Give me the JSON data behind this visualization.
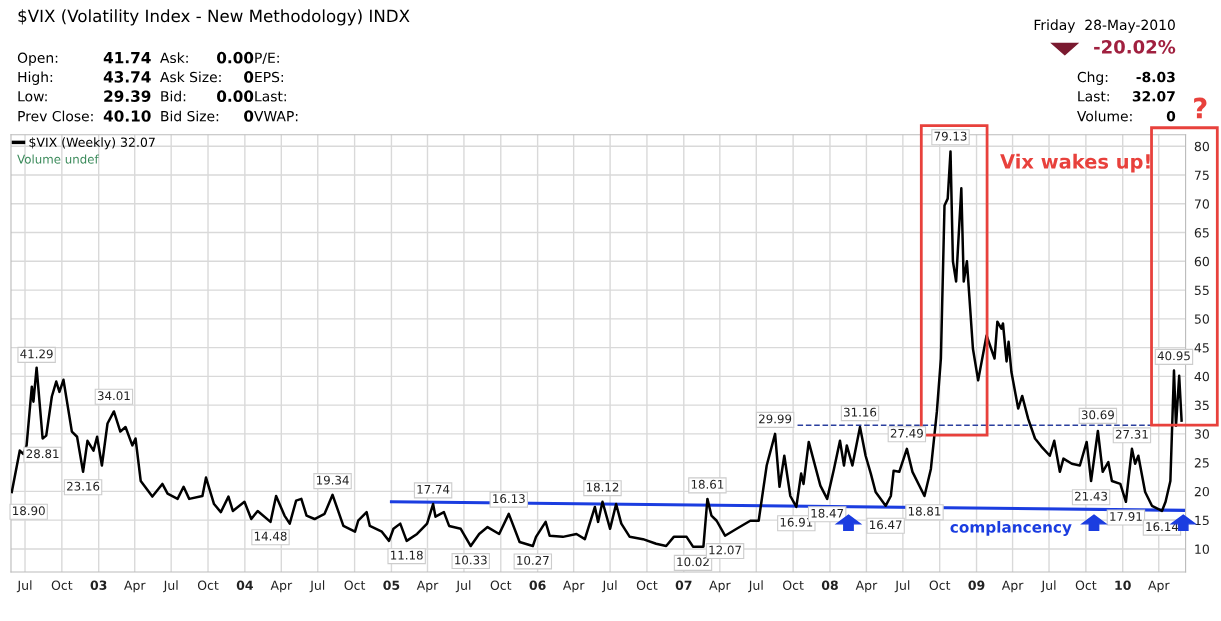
{
  "chart_data": {
    "type": "line",
    "title": "$VIX (Volatility Index - New Methodology) INDX",
    "xlim": [
      "2002-05-27",
      "2010-06-07"
    ],
    "ylim": [
      6,
      82
    ],
    "yticks": [
      10,
      15,
      20,
      25,
      30,
      35,
      40,
      45,
      50,
      55,
      60,
      65,
      70,
      75,
      80
    ],
    "xticks": [
      {
        "value": "2002-07-01",
        "label": "Jul"
      },
      {
        "value": "2002-10-01",
        "label": "Oct"
      },
      {
        "value": "2003-01-01",
        "label": "03"
      },
      {
        "value": "2003-04-01",
        "label": "Apr"
      },
      {
        "value": "2003-07-01",
        "label": "Jul"
      },
      {
        "value": "2003-10-01",
        "label": "Oct"
      },
      {
        "value": "2004-01-01",
        "label": "04"
      },
      {
        "value": "2004-04-01",
        "label": "Apr"
      },
      {
        "value": "2004-07-01",
        "label": "Jul"
      },
      {
        "value": "2004-10-01",
        "label": "Oct"
      },
      {
        "value": "2005-01-01",
        "label": "05"
      },
      {
        "value": "2005-04-01",
        "label": "Apr"
      },
      {
        "value": "2005-07-01",
        "label": "Jul"
      },
      {
        "value": "2005-10-01",
        "label": "Oct"
      },
      {
        "value": "2006-01-01",
        "label": "06"
      },
      {
        "value": "2006-04-01",
        "label": "Apr"
      },
      {
        "value": "2006-07-01",
        "label": "Jul"
      },
      {
        "value": "2006-10-01",
        "label": "Oct"
      },
      {
        "value": "2007-01-01",
        "label": "07"
      },
      {
        "value": "2007-04-01",
        "label": "Apr"
      },
      {
        "value": "2007-07-01",
        "label": "Jul"
      },
      {
        "value": "2007-10-01",
        "label": "Oct"
      },
      {
        "value": "2008-01-01",
        "label": "08"
      },
      {
        "value": "2008-04-01",
        "label": "Apr"
      },
      {
        "value": "2008-07-01",
        "label": "Jul"
      },
      {
        "value": "2008-10-01",
        "label": "Oct"
      },
      {
        "value": "2009-01-01",
        "label": "09"
      },
      {
        "value": "2009-04-01",
        "label": "Apr"
      },
      {
        "value": "2009-07-01",
        "label": "Jul"
      },
      {
        "value": "2009-10-01",
        "label": "Oct"
      },
      {
        "value": "2010-01-01",
        "label": "10"
      },
      {
        "value": "2010-04-01",
        "label": "Apr"
      }
    ],
    "grid": true,
    "legend": "top left",
    "marker": "none",
    "series": [
      {
        "name": "$VIX (Weekly) 32.07",
        "color": "#000000",
        "x": [
          "2002-05-29",
          "2002-06-18",
          "2002-06-27",
          "2002-07-05",
          "2002-07-18",
          "2002-07-22",
          "2002-07-30",
          "2002-08-14",
          "2002-08-23",
          "2002-09-06",
          "2002-09-17",
          "2002-09-25",
          "2002-10-05",
          "2002-10-26",
          "2002-11-08",
          "2002-11-23",
          "2002-12-04",
          "2002-12-19",
          "2002-12-28",
          "2003-01-09",
          "2003-01-23",
          "2003-02-08",
          "2003-02-24",
          "2003-03-09",
          "2003-03-26",
          "2003-04-03",
          "2003-04-16",
          "2003-05-15",
          "2003-06-09",
          "2003-06-22",
          "2003-07-17",
          "2003-08-01",
          "2003-08-15",
          "2003-09-17",
          "2003-09-26",
          "2003-10-16",
          "2003-11-02",
          "2003-11-21",
          "2003-12-02",
          "2003-12-31",
          "2004-01-17",
          "2004-02-02",
          "2004-03-05",
          "2004-03-19",
          "2004-04-09",
          "2004-04-22",
          "2004-05-08",
          "2004-05-21",
          "2004-06-03",
          "2004-06-23",
          "2004-07-18",
          "2004-08-07",
          "2004-09-03",
          "2004-10-02",
          "2004-10-10",
          "2004-10-31",
          "2004-11-08",
          "2004-12-08",
          "2004-12-26",
          "2005-01-06",
          "2005-01-23",
          "2005-02-08",
          "2005-03-06",
          "2005-03-31",
          "2005-04-15",
          "2005-04-21",
          "2005-05-12",
          "2005-05-25",
          "2005-06-23",
          "2005-07-18",
          "2005-08-08",
          "2005-08-29",
          "2005-09-27",
          "2005-10-21",
          "2005-11-17",
          "2005-12-20",
          "2005-12-28",
          "2006-01-21",
          "2006-01-31",
          "2006-03-05",
          "2006-04-08",
          "2006-04-29",
          "2006-05-24",
          "2006-06-01",
          "2006-06-12",
          "2006-07-01",
          "2006-07-16",
          "2006-07-29",
          "2006-08-19",
          "2006-09-21",
          "2006-10-24",
          "2006-11-18",
          "2006-12-07",
          "2007-01-08",
          "2007-01-24",
          "2007-02-19",
          "2007-03-01",
          "2007-03-11",
          "2007-03-24",
          "2007-04-14",
          "2007-05-13",
          "2007-06-16",
          "2007-07-07",
          "2007-07-27",
          "2007-08-17",
          "2007-08-28",
          "2007-09-09",
          "2007-09-24",
          "2007-10-09",
          "2007-10-21",
          "2007-10-27",
          "2007-11-09",
          "2007-12-08",
          "2007-12-25",
          "2008-01-11",
          "2008-01-26",
          "2008-02-05",
          "2008-02-12",
          "2008-02-26",
          "2008-03-16",
          "2008-03-30",
          "2008-04-12",
          "2008-04-24",
          "2008-05-19",
          "2008-06-01",
          "2008-06-08",
          "2008-06-22",
          "2008-07-11",
          "2008-07-25",
          "2008-08-24",
          "2008-09-09",
          "2008-09-24",
          "2008-10-04",
          "2008-10-13",
          "2008-10-21",
          "2008-10-28",
          "2008-11-03",
          "2008-11-11",
          "2008-11-24",
          "2008-11-30",
          "2008-12-08",
          "2008-12-23",
          "2009-01-05",
          "2009-01-26",
          "2009-02-15",
          "2009-02-22",
          "2009-03-04",
          "2009-03-08",
          "2009-03-17",
          "2009-03-22",
          "2009-03-29",
          "2009-04-15",
          "2009-04-25",
          "2009-05-10",
          "2009-05-27",
          "2009-06-12",
          "2009-07-03",
          "2009-07-14",
          "2009-07-28",
          "2009-08-06",
          "2009-08-27",
          "2009-09-16",
          "2009-10-03",
          "2009-10-14",
          "2009-10-31",
          "2009-11-12",
          "2009-11-26",
          "2009-12-05",
          "2009-12-26",
          "2010-01-09",
          "2010-01-24",
          "2010-02-01",
          "2010-02-09",
          "2010-02-26",
          "2010-03-15",
          "2010-04-09",
          "2010-04-18",
          "2010-04-30",
          "2010-05-09",
          "2010-05-14",
          "2010-05-22",
          "2010-05-28"
        ],
        "values": [
          19.9,
          27.1,
          26.5,
          28.0,
          38.2,
          35.6,
          41.5,
          29.2,
          29.7,
          36.5,
          39.1,
          37.3,
          39.4,
          30.4,
          29.5,
          23.4,
          28.8,
          27.1,
          29.5,
          24.5,
          31.8,
          33.9,
          30.4,
          31.2,
          28.0,
          29.2,
          21.8,
          19.1,
          21.3,
          19.6,
          18.7,
          20.8,
          18.7,
          19.2,
          22.4,
          17.8,
          16.4,
          19.1,
          16.6,
          18.2,
          15.2,
          16.6,
          14.7,
          19.2,
          15.8,
          14.4,
          18.4,
          18.7,
          15.8,
          15.2,
          16.1,
          19.4,
          14.0,
          13.0,
          14.9,
          16.4,
          14.0,
          13.0,
          11.4,
          13.5,
          14.4,
          11.4,
          12.6,
          14.4,
          17.8,
          15.6,
          16.4,
          14.0,
          13.5,
          10.5,
          12.6,
          13.8,
          12.6,
          16.1,
          11.2,
          10.5,
          12.1,
          14.7,
          12.3,
          12.1,
          12.6,
          11.7,
          17.3,
          14.7,
          18.2,
          13.5,
          17.8,
          14.4,
          12.1,
          11.7,
          10.9,
          10.5,
          12.1,
          12.1,
          10.4,
          10.4,
          18.7,
          15.8,
          14.9,
          12.3,
          13.5,
          14.9,
          14.9,
          24.5,
          30.0,
          20.8,
          26.2,
          19.2,
          17.3,
          23.1,
          21.3,
          28.6,
          21.0,
          18.7,
          23.9,
          28.8,
          24.5,
          28.0,
          24.5,
          31.2,
          26.2,
          23.1,
          19.9,
          17.5,
          19.2,
          23.6,
          23.4,
          27.4,
          23.4,
          19.2,
          23.9,
          33.9,
          43.1,
          69.7,
          70.9,
          79.1,
          60.0,
          56.5,
          72.7,
          56.5,
          60.0,
          44.8,
          39.3,
          47.1,
          43.1,
          49.5,
          48.3,
          49.2,
          42.6,
          46.0,
          40.8,
          34.4,
          36.6,
          32.6,
          29.2,
          27.8,
          26.2,
          28.8,
          23.4,
          25.7,
          24.8,
          24.5,
          28.6,
          21.8,
          30.5,
          23.4,
          25.1,
          21.8,
          21.3,
          18.2,
          27.4,
          24.8,
          26.2,
          19.9,
          17.5,
          16.6,
          18.2,
          21.8,
          41.0,
          31.4,
          40.1,
          32.3
        ]
      },
      {
        "name": "complancency",
        "color": "#1b3de0",
        "x": [
          "2005-01-01",
          "2010-06-07"
        ],
        "values": [
          18.2,
          16.7
        ]
      },
      {
        "color": "#2a3f9e",
        "line_style": "dashed",
        "x": [
          "2007-10-12",
          "2010-06-07"
        ],
        "values": [
          31.5,
          31.5
        ]
      }
    ],
    "annotations": [
      "Open:",
      "41.74",
      "Ask:",
      "0.00",
      "P/E:",
      "High:",
      "43.74",
      "Ask Size:",
      "0",
      "EPS:",
      "Low:",
      "29.39",
      "Bid:",
      "0.00",
      "Last:",
      "Prev Close:",
      "40.10",
      "Bid Size:",
      "0",
      "VWAP:",
      "Friday  28-May-2010",
      "-20.02%",
      "Chg:",
      "-8.03",
      "Last:",
      "32.07",
      "Volume:",
      "0",
      "Volume undef",
      "Vix wakes up!",
      "?",
      {
        "text": "18.90",
        "x": "2002-05-29",
        "y": 18.9
      },
      {
        "text": "41.29",
        "x": "2002-07-30",
        "y": 41.29
      },
      {
        "text": "28.81",
        "x": "2002-08-14",
        "y": 28.81
      },
      {
        "text": "23.16",
        "x": "2002-11-23",
        "y": 23.16
      },
      {
        "text": "34.01",
        "x": "2003-02-08",
        "y": 34.01
      },
      {
        "text": "14.48",
        "x": "2004-03-05",
        "y": 14.48
      },
      {
        "text": "19.34",
        "x": "2004-08-07",
        "y": 19.34
      },
      {
        "text": "11.18",
        "x": "2005-02-08",
        "y": 11.18
      },
      {
        "text": "17.74",
        "x": "2005-04-15",
        "y": 17.74
      },
      {
        "text": "10.33",
        "x": "2005-07-18",
        "y": 10.33
      },
      {
        "text": "16.13",
        "x": "2005-10-21",
        "y": 16.13
      },
      {
        "text": "10.27",
        "x": "2005-12-20",
        "y": 10.27
      },
      {
        "text": "18.12",
        "x": "2006-06-12",
        "y": 18.12
      },
      {
        "text": "10.02",
        "x": "2007-01-24",
        "y": 10.02
      },
      {
        "text": "18.61",
        "x": "2007-03-01",
        "y": 18.61
      },
      {
        "text": "12.07",
        "x": "2007-04-14",
        "y": 12.07
      },
      {
        "text": "29.99",
        "x": "2007-08-17",
        "y": 29.99
      },
      {
        "text": "16.91",
        "x": "2007-10-09",
        "y": 16.91
      },
      {
        "text": "18.47",
        "x": "2007-12-25",
        "y": 18.47
      },
      {
        "text": "31.16",
        "x": "2008-03-16",
        "y": 31.16
      },
      {
        "text": "16.47",
        "x": "2008-05-19",
        "y": 16.47
      },
      {
        "text": "27.49",
        "x": "2008-07-11",
        "y": 27.49
      },
      {
        "text": "18.81",
        "x": "2008-08-24",
        "y": 18.81
      },
      {
        "text": "79.13",
        "x": "2008-10-28",
        "y": 79.13
      },
      {
        "text": "21.43",
        "x": "2009-10-14",
        "y": 21.43
      },
      {
        "text": "30.69",
        "x": "2009-10-31",
        "y": 30.69
      },
      {
        "text": "17.91",
        "x": "2010-01-09",
        "y": 17.91
      },
      {
        "text": "27.31",
        "x": "2010-01-24",
        "y": 27.31
      },
      {
        "text": "16.14",
        "x": "2010-04-09",
        "y": 16.14
      },
      {
        "text": "40.95",
        "x": "2010-05-09",
        "y": 40.95
      }
    ]
  }
}
